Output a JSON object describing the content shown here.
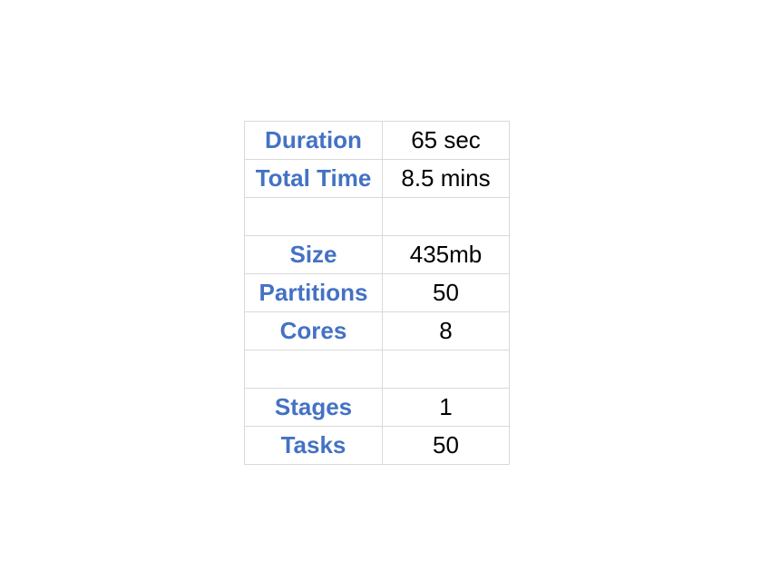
{
  "table": {
    "rows": [
      {
        "label": "Duration",
        "value": "65 sec"
      },
      {
        "label": "Total Time",
        "value": "8.5 mins"
      },
      {
        "label": "",
        "value": ""
      },
      {
        "label": "Size",
        "value": "435mb"
      },
      {
        "label": "Partitions",
        "value": "50"
      },
      {
        "label": "Cores",
        "value": "8"
      },
      {
        "label": "",
        "value": ""
      },
      {
        "label": "Stages",
        "value": "1"
      },
      {
        "label": "Tasks",
        "value": "50"
      }
    ]
  },
  "colors": {
    "label": "#4472c4",
    "value": "#000000",
    "gridline": "#d9d9d9"
  }
}
